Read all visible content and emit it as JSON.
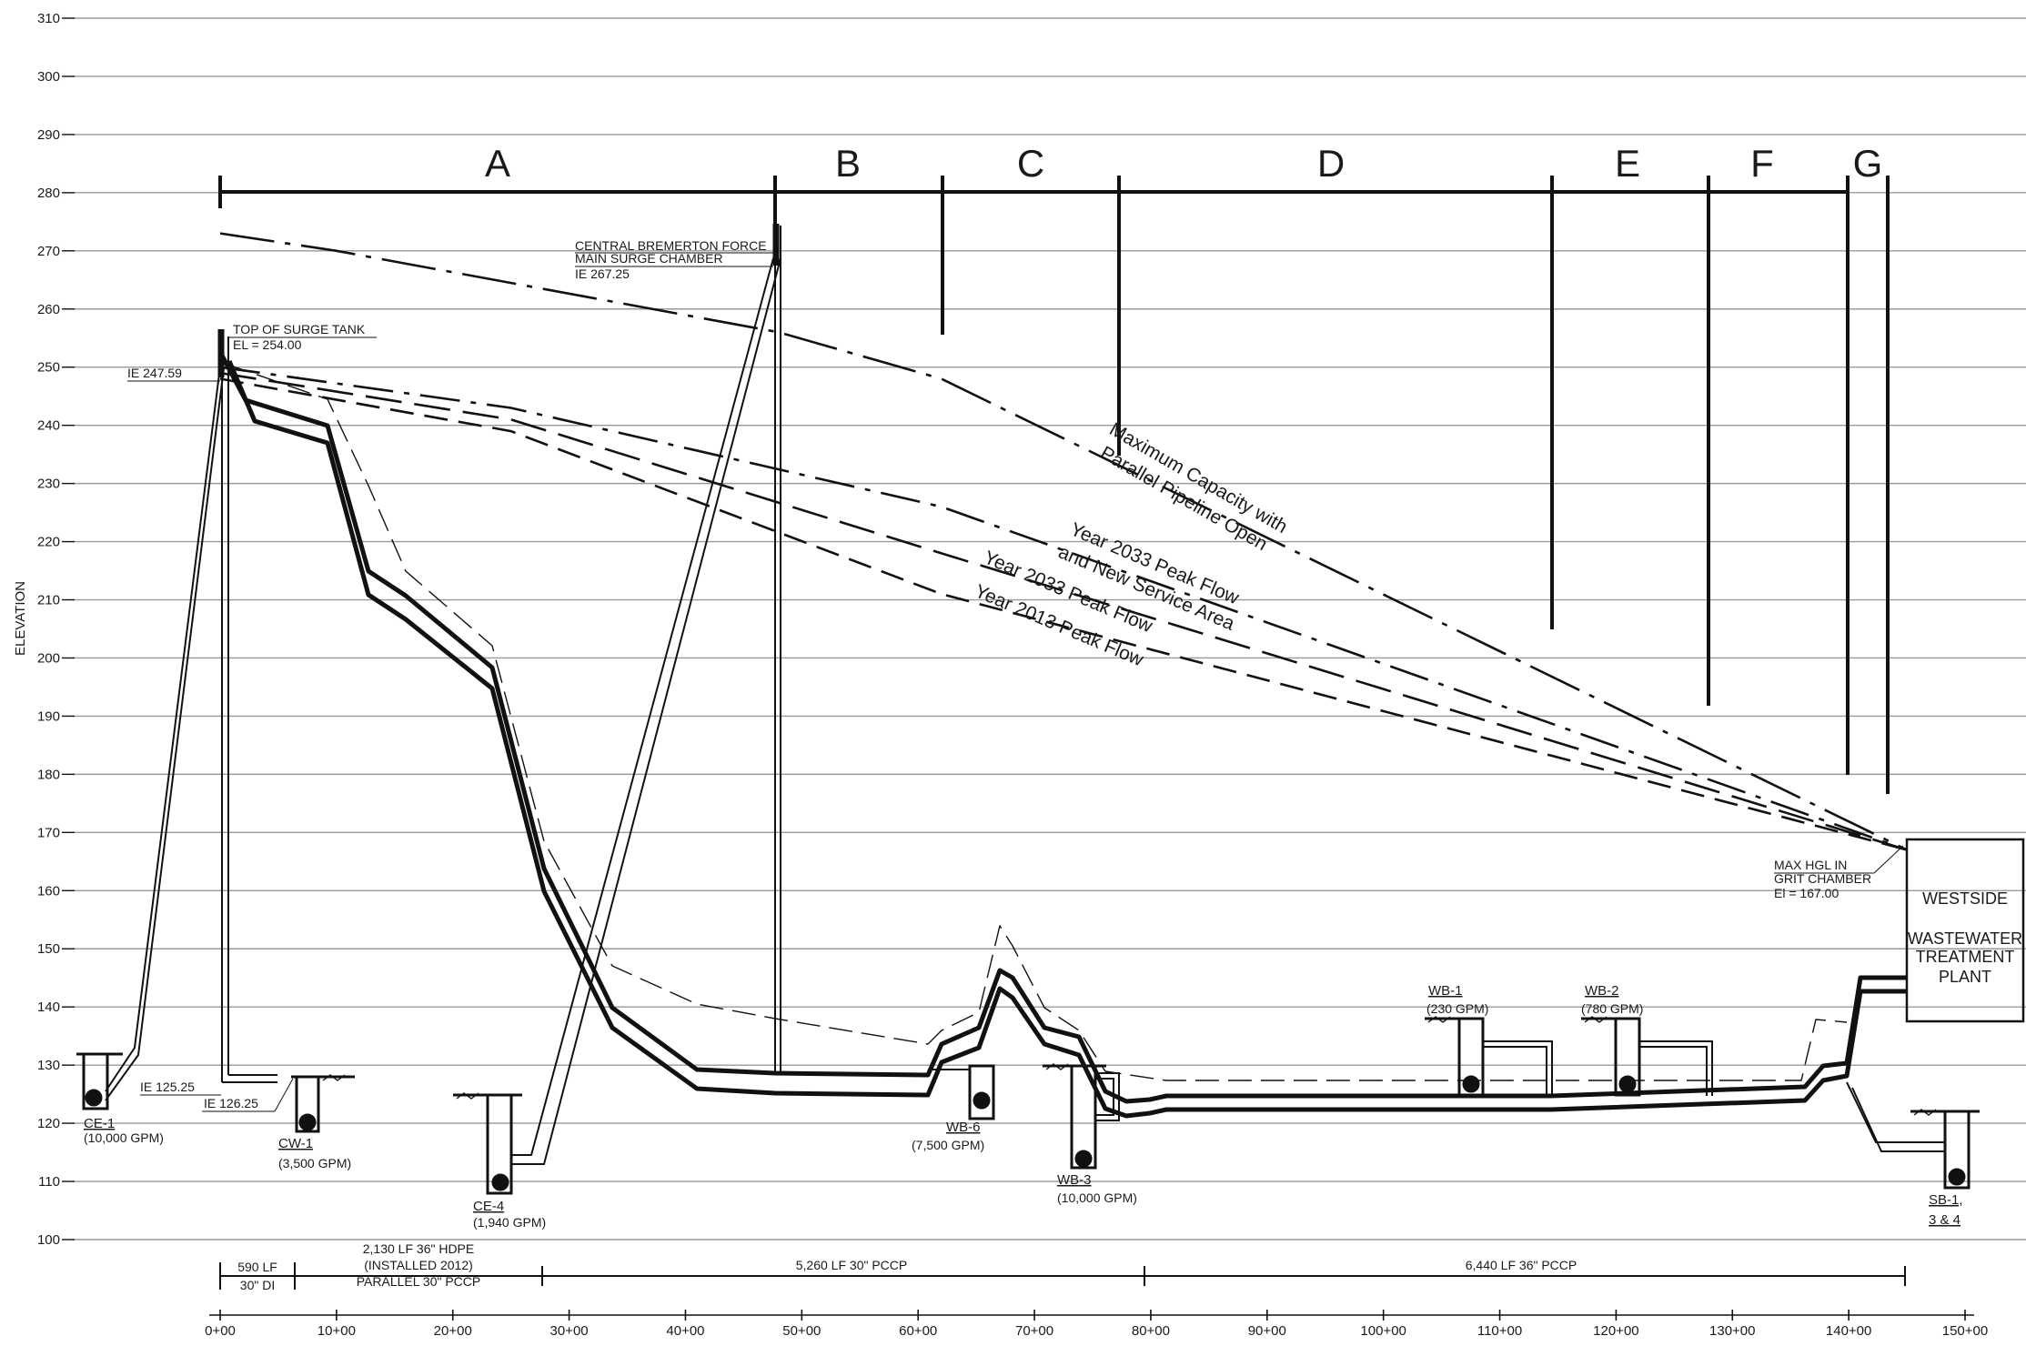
{
  "ylabel": "ELEVATION",
  "y_ticks": [
    "310",
    "300",
    "290",
    "280",
    "270",
    "260",
    "250",
    "240",
    "230",
    "220",
    "210",
    "200",
    "190",
    "180",
    "170",
    "160",
    "150",
    "140",
    "130",
    "120",
    "110",
    "100"
  ],
  "x_ticks": [
    "0+00",
    "10+00",
    "20+00",
    "30+00",
    "40+00",
    "50+00",
    "60+00",
    "70+00",
    "80+00",
    "90+00",
    "100+00",
    "110+00",
    "120+00",
    "130+00",
    "140+00",
    "150+00"
  ],
  "segments": [
    "A",
    "B",
    "C",
    "D",
    "E",
    "F",
    "G"
  ],
  "annotations": {
    "surge_chamber": [
      "CENTRAL BREMERTON FORCE",
      "MAIN SURGE CHAMBER",
      "IE 267.25"
    ],
    "surge_tank": [
      "TOP OF SURGE TANK",
      "EL = 254.00"
    ],
    "ie_247": "IE 247.59",
    "ie_125": "IE 125.25",
    "ie_126": "IE 126.25",
    "max_hgl": [
      "MAX HGL IN",
      "GRIT CHAMBER",
      "El = 167.00"
    ]
  },
  "curves": {
    "max_capacity": [
      "Maximum Capacity with",
      "Parallel Pipeline Open"
    ],
    "y2033_new": [
      "Year 2033 Peak Flow",
      "and New Service Area"
    ],
    "y2033": "Year 2033 Peak Flow",
    "y2013": "Year 2013 Peak Flow"
  },
  "plant": [
    "WESTSIDE",
    "WASTEWATER",
    "TREATMENT",
    "PLANT"
  ],
  "pumps": {
    "ce1": {
      "name": "CE-1",
      "flow": "(10,000 GPM)"
    },
    "cw1": {
      "name": "CW-1",
      "flow": "(3,500 GPM)"
    },
    "ce4": {
      "name": "CE-4",
      "flow": "(1,940 GPM)"
    },
    "wb6": {
      "name": "WB-6",
      "flow": "(7,500 GPM)"
    },
    "wb3": {
      "name": "WB-3",
      "flow": "(10,000 GPM)"
    },
    "wb1": {
      "name": "WB-1",
      "flow": "(230 GPM)"
    },
    "wb2": {
      "name": "WB-2",
      "flow": "(780 GPM)"
    },
    "sb1": {
      "name": "SB-1,",
      "name2": "3 & 4"
    }
  },
  "pipes": {
    "p1": [
      "590 LF",
      "30\" DI"
    ],
    "p2": [
      "2,130 LF 36\" HDPE",
      "(INSTALLED 2012)",
      "PARALLEL 30\" PCCP"
    ],
    "p3": "5,260 LF 30\" PCCP",
    "p4": "6,440 LF 36\" PCCP"
  },
  "chart_data": {
    "type": "line",
    "xlabel": "",
    "ylabel": "ELEVATION",
    "ylim": [
      100,
      310
    ],
    "xlim": [
      0,
      15000
    ],
    "grid": true,
    "series": [
      {
        "name": "Maximum Capacity with Parallel Pipeline Open",
        "x": [
          0,
          1000,
          4800,
          6200,
          14500
        ],
        "y": [
          273,
          270,
          256,
          248,
          167
        ]
      },
      {
        "name": "Year 2033 Peak Flow and New Service Area",
        "x": [
          0,
          2500,
          6200,
          14500
        ],
        "y": [
          250,
          243,
          226,
          167
        ]
      },
      {
        "name": "Year 2033 Peak Flow",
        "x": [
          0,
          2500,
          6200,
          14500
        ],
        "y": [
          249,
          241,
          218,
          167
        ]
      },
      {
        "name": "Year 2013 Peak Flow",
        "x": [
          0,
          2500,
          6200,
          14500
        ],
        "y": [
          248,
          239,
          211,
          167
        ]
      }
    ]
  }
}
